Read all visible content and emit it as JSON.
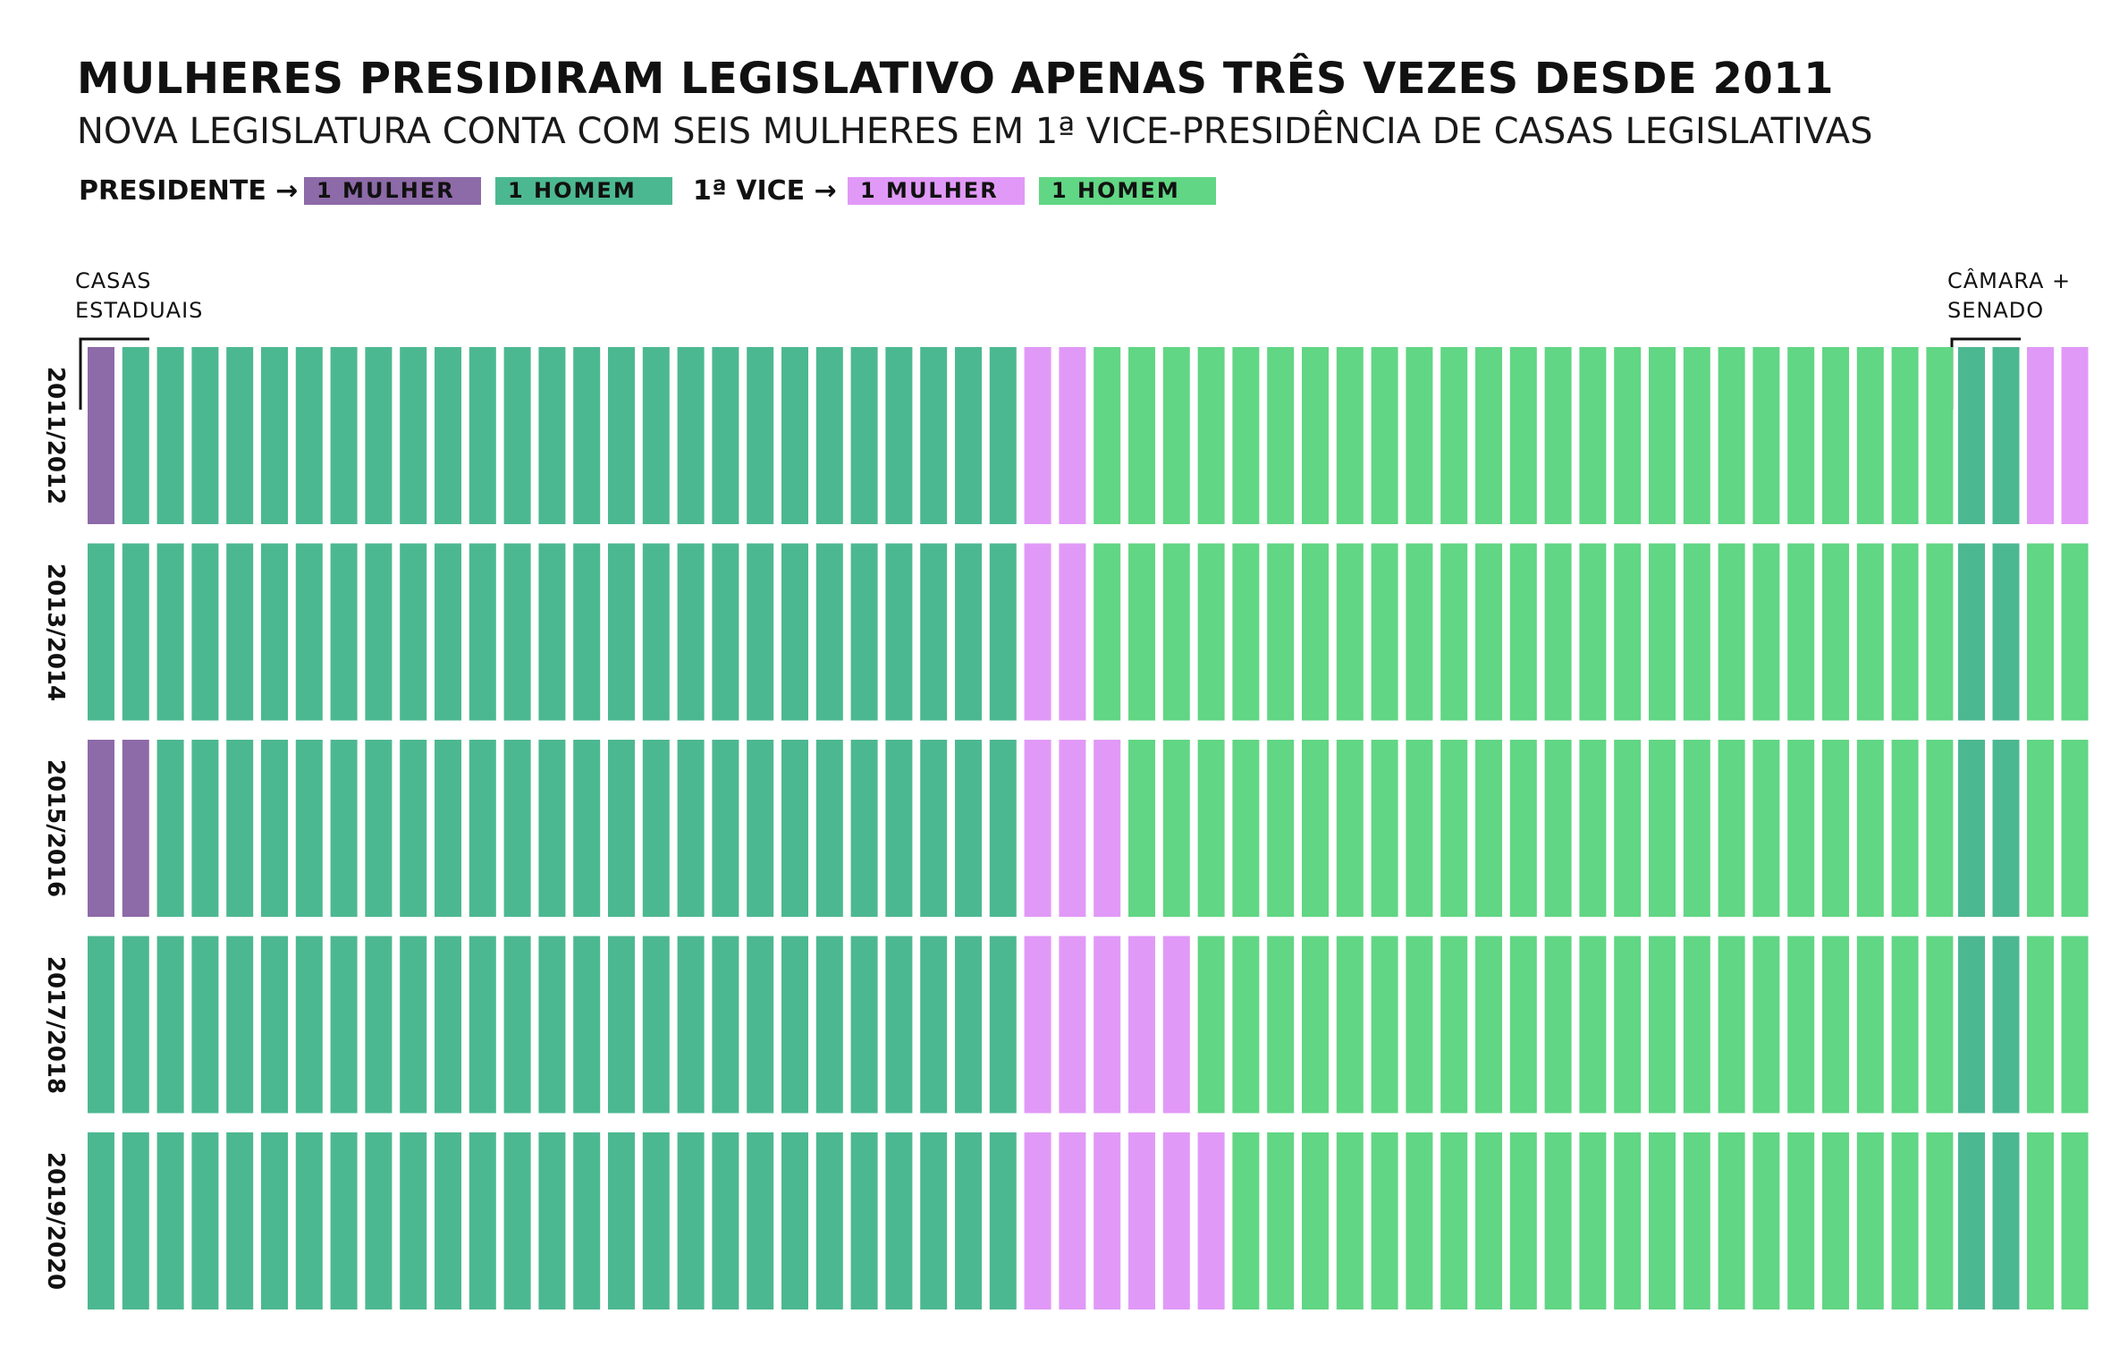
{
  "title": "MULHERES PRESIDIRAM LEGISLATIVO APENAS TRÊS VEZES DESDE 2011",
  "subtitle": "NOVA LEGISLATURA CONTA COM SEIS MULHERES EM 1ª VICE-PRESIDÊNCIA DE CASAS LEGISLATIVAS",
  "legend": {
    "presidente_label": "PRESIDENTE →",
    "vice_label": "1ª VICE →",
    "items": [
      {
        "label": "1 MULHER",
        "color": "#8d6aa8"
      },
      {
        "label": "1 HOMEM",
        "color": "#4cb891"
      },
      {
        "label": "1 MULHER",
        "color": "#e199f7"
      },
      {
        "label": "1 HOMEM",
        "color": "#61d684"
      }
    ]
  },
  "groups": {
    "estaduais": [
      "CASAS",
      "ESTADUAIS"
    ],
    "federal": [
      "CÂMARA +",
      "SENADO"
    ]
  },
  "chart_data": {
    "type": "table",
    "rows": [
      {
        "period": "2011/2012",
        "state_president_women": 1,
        "state_vice_women": 2,
        "federal_vice_women": 2
      },
      {
        "period": "2013/2014",
        "state_president_women": 0,
        "state_vice_women": 2,
        "federal_vice_women": 0
      },
      {
        "period": "2015/2016",
        "state_president_women": 2,
        "state_vice_women": 3,
        "federal_vice_women": 0
      },
      {
        "period": "2017/2018",
        "state_president_women": 0,
        "state_vice_women": 5,
        "federal_vice_women": 0
      },
      {
        "period": "2019/2020",
        "state_president_women": 0,
        "state_vice_women": 6,
        "federal_vice_women": 0
      }
    ],
    "state_houses": 27,
    "federal_houses": 2,
    "colors": {
      "president_woman": "#8d6aa8",
      "president_man": "#4cb891",
      "vice_woman": "#e199f7",
      "vice_man": "#61d684"
    }
  }
}
